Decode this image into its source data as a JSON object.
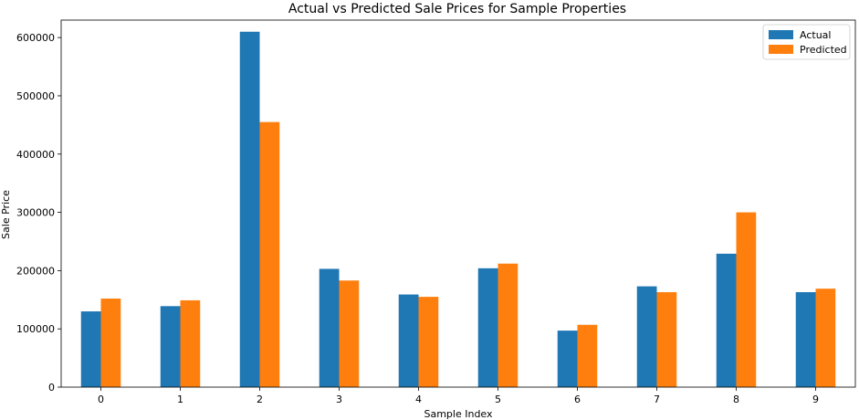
{
  "chart_data": {
    "type": "bar",
    "title": "Actual vs Predicted Sale Prices for Sample Properties",
    "xlabel": "Sample Index",
    "ylabel": "Sale Price",
    "categories": [
      "0",
      "1",
      "2",
      "3",
      "4",
      "5",
      "6",
      "7",
      "8",
      "9"
    ],
    "series": [
      {
        "name": "Actual",
        "color": "#1f77b4",
        "values": [
          130000,
          139000,
          610000,
          203000,
          159000,
          204000,
          97000,
          173000,
          229000,
          163000
        ]
      },
      {
        "name": "Predicted",
        "color": "#ff7f0e",
        "values": [
          152000,
          149000,
          455000,
          183000,
          155000,
          212000,
          107000,
          163000,
          300000,
          169000
        ]
      }
    ],
    "ylim": [
      0,
      630000
    ],
    "yticks": [
      0,
      100000,
      200000,
      300000,
      400000,
      500000,
      600000
    ],
    "ytick_labels": [
      "0",
      "100000",
      "200000",
      "300000",
      "400000",
      "500000",
      "600000"
    ],
    "grid": false,
    "legend_position": "top-right"
  }
}
